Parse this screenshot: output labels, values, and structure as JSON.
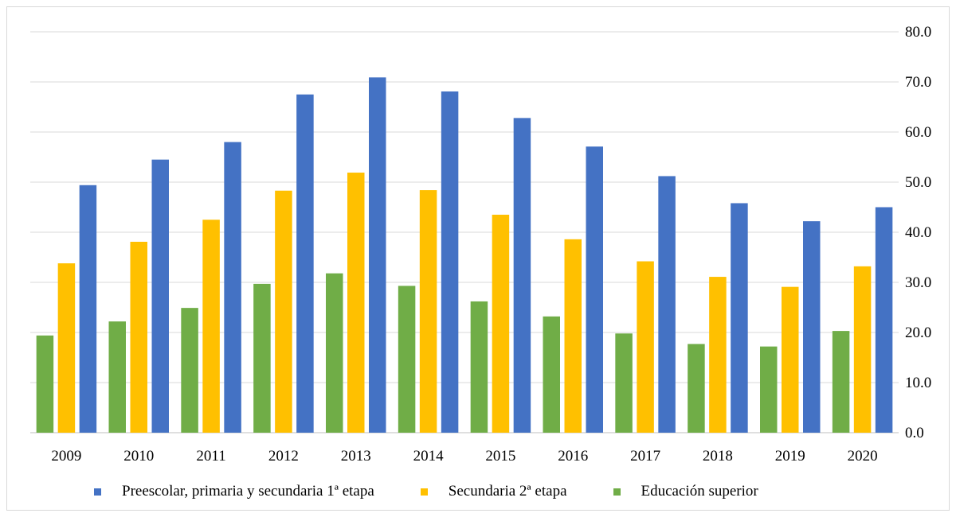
{
  "chart_data": {
    "type": "bar",
    "title": "",
    "xlabel": "",
    "ylabel": "",
    "categories": [
      "2009",
      "2010",
      "2011",
      "2012",
      "2013",
      "2014",
      "2015",
      "2016",
      "2017",
      "2018",
      "2019",
      "2020"
    ],
    "ylim": [
      0,
      80
    ],
    "yticks": [
      "0.0",
      "10.0",
      "20.0",
      "30.0",
      "40.0",
      "50.0",
      "60.0",
      "70.0",
      "80.0"
    ],
    "y_axis_position": "right",
    "grid": true,
    "legend_position": "bottom",
    "series": [
      {
        "name": "Educación superior",
        "color": "#70ad47",
        "values": [
          19.4,
          22.2,
          24.9,
          29.7,
          31.8,
          29.3,
          26.2,
          23.2,
          19.8,
          17.7,
          17.2,
          20.3
        ]
      },
      {
        "name": "Secundaria 2ª etapa",
        "color": "#ffc000",
        "values": [
          33.8,
          38.1,
          42.5,
          48.3,
          51.9,
          48.4,
          43.5,
          38.6,
          34.2,
          31.1,
          29.1,
          33.2
        ]
      },
      {
        "name": "Preescolar, primaria y secundaria 1ª etapa",
        "color": "#4472c4",
        "values": [
          49.4,
          54.5,
          58.0,
          67.5,
          70.9,
          68.1,
          62.8,
          57.1,
          51.2,
          45.8,
          42.2,
          45.0
        ]
      }
    ],
    "legend_order": [
      2,
      1,
      0
    ]
  }
}
